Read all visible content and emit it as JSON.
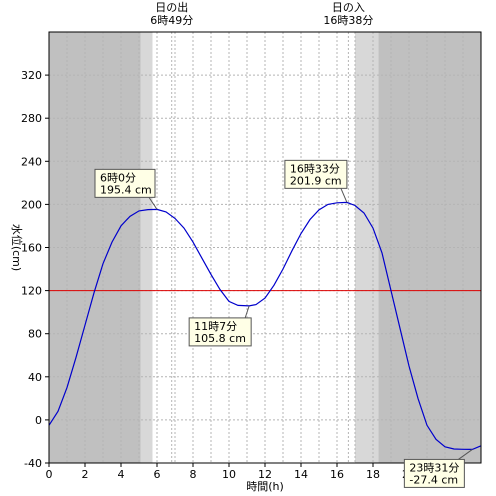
{
  "colors": {
    "night": "#c0c0c0",
    "twilight": "#d8d8d8",
    "day": "#ffffff",
    "grid": "#b4b4b4",
    "curve": "#0000cc",
    "threshold": "#dd0000",
    "callout_bg": "#ffffe6",
    "callout_border": "#555555"
  },
  "sun": {
    "rise": {
      "label": "日の出",
      "time": "6時49分",
      "hour": 6.817
    },
    "set": {
      "label": "日の入",
      "time": "16時38分",
      "hour": 16.633
    }
  },
  "chart_data": {
    "type": "line",
    "xlabel": "時間(h)",
    "ylabel": "水位(cm)",
    "xlim": [
      0,
      24
    ],
    "ylim": [
      -40,
      360
    ],
    "x_ticks": [
      0,
      2,
      4,
      6,
      8,
      10,
      12,
      14,
      16,
      18,
      20
    ],
    "y_ticks": [
      -40,
      0,
      40,
      80,
      120,
      160,
      200,
      240,
      280,
      320
    ],
    "grid": true,
    "threshold": 120,
    "shading": {
      "night": [
        [
          0,
          5.1
        ],
        [
          18.3,
          24
        ]
      ],
      "twilight": [
        [
          5.1,
          5.75
        ],
        [
          17.0,
          18.3
        ]
      ],
      "day_bright": [
        [
          5.75,
          17.0
        ]
      ]
    },
    "series": [
      {
        "x": [
          0,
          0.5,
          1,
          1.5,
          2,
          2.5,
          3,
          3.5,
          4,
          4.5,
          5,
          5.5,
          6,
          6.5,
          7,
          7.5,
          8,
          8.5,
          9,
          9.5,
          10,
          10.5,
          11.12,
          11.5,
          12,
          12.5,
          13,
          13.5,
          14,
          14.5,
          15,
          15.5,
          16,
          16.55,
          17,
          17.5,
          18,
          18.5,
          19,
          19.5,
          20,
          20.5,
          21,
          21.5,
          22,
          22.5,
          23,
          23.52,
          24
        ],
        "y": [
          -5,
          8,
          30,
          58,
          88,
          118,
          145,
          165,
          180,
          189,
          194,
          195.2,
          195.4,
          193,
          187,
          178,
          165,
          150,
          135,
          121,
          110,
          106.3,
          105.8,
          107,
          113,
          125,
          140,
          157,
          173,
          186,
          195,
          200,
          201.5,
          201.9,
          199,
          192,
          178,
          155,
          120,
          85,
          50,
          20,
          -5,
          -18,
          -25,
          -27,
          -27.3,
          -27.4,
          -24
        ]
      }
    ],
    "annotations": [
      {
        "time": "6時0分",
        "level": "195.4 cm",
        "x": 6.0,
        "y": 195.4
      },
      {
        "time": "11時7分",
        "level": "105.8 cm",
        "x": 11.12,
        "y": 105.8
      },
      {
        "time": "16時33分",
        "level": "201.9 cm",
        "x": 16.55,
        "y": 201.9
      },
      {
        "time": "23時31分",
        "level": "-27.4 cm",
        "x": 23.52,
        "y": -27.4
      }
    ]
  }
}
